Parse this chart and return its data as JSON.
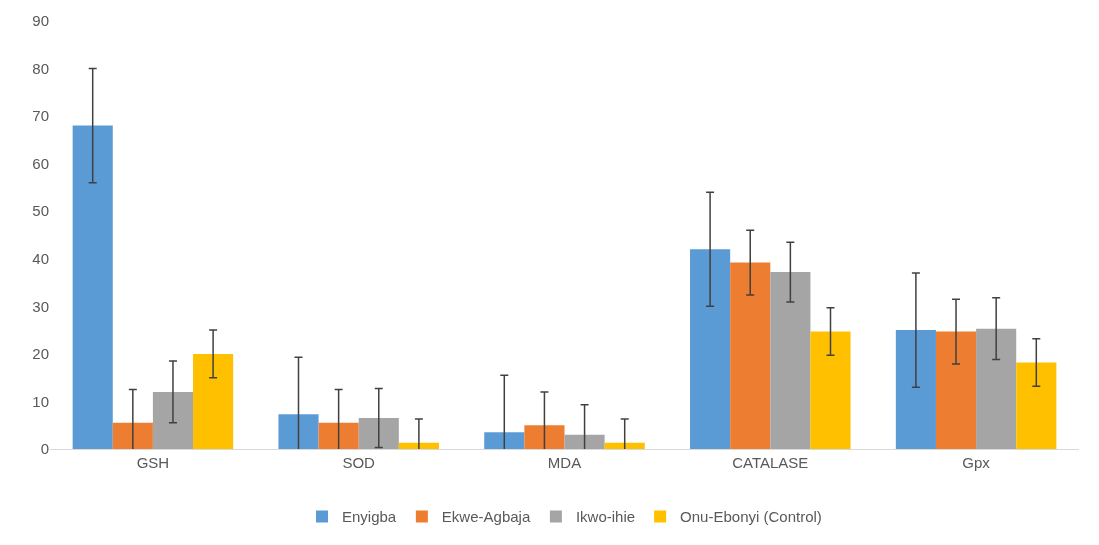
{
  "chart_data": {
    "type": "bar",
    "categories": [
      "GSH",
      "SOD",
      "MDA",
      "CATALASE",
      "Gpx"
    ],
    "series": [
      {
        "name": "Enyigba",
        "color": "#5b9bd5",
        "values": [
          68,
          7.3,
          3.5,
          42,
          25
        ],
        "errors": [
          12,
          12,
          12,
          12,
          12
        ]
      },
      {
        "name": "Ekwe-Agbaja",
        "color": "#ed7d31",
        "values": [
          5.5,
          5.5,
          5,
          39.2,
          24.7
        ],
        "errors": [
          7,
          7,
          7,
          6.8,
          6.8
        ]
      },
      {
        "name": "Ikwo-ihie",
        "color": "#a5a5a5",
        "values": [
          12,
          6.5,
          3,
          37.2,
          25.3
        ],
        "errors": [
          6.5,
          6.2,
          6.3,
          6.3,
          6.5
        ]
      },
      {
        "name": "Onu-Ebonyi (Control)",
        "color": "#ffc000",
        "values": [
          20,
          1.3,
          1.3,
          24.7,
          18.2
        ],
        "errors": [
          5,
          5,
          5,
          5,
          5
        ]
      }
    ],
    "ylim": [
      0,
      90
    ],
    "yticks": [
      0,
      10,
      20,
      30,
      40,
      50,
      60,
      70,
      80,
      90
    ],
    "grid": false,
    "legend": "bottom"
  }
}
